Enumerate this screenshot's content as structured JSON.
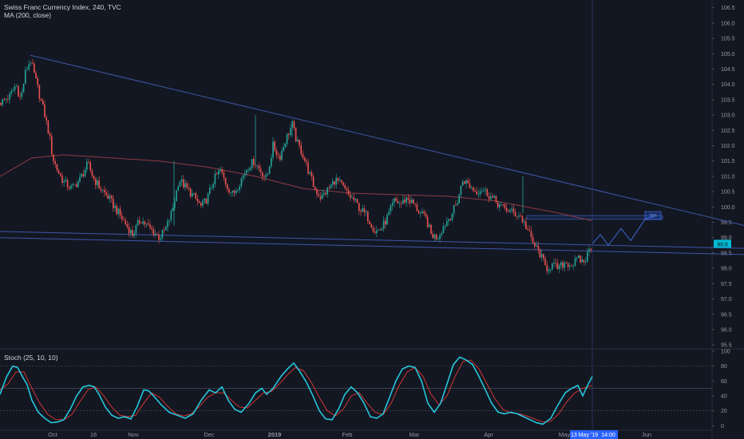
{
  "header": {
    "symbol_title": "Swiss Franc Currency Index, 240, TVC",
    "ma_label": "MA (200, close)",
    "stoch_label": "Stoch (25, 10, 10)"
  },
  "colors": {
    "background": "#131722",
    "up_candle": "#26a69a",
    "down_candle": "#ef5350",
    "trendline": "#3f57a6",
    "ma_line": "#8f3b45",
    "k_line": "#26c6da",
    "d_line": "#e53935",
    "last_price_badge": "#00bcd4",
    "cursor_badge": "#2962ff"
  },
  "chart_data": [
    {
      "type": "candlestick",
      "title": "Swiss Franc Currency Index, 240, TVC",
      "ylim": [
        95.4,
        106.7
      ],
      "y_ticks": [
        "106.5",
        "106.0",
        "105.5",
        "105.0",
        "104.5",
        "104.0",
        "103.5",
        "103.0",
        "102.5",
        "102.0",
        "101.5",
        "101.0",
        "100.5",
        "100.0",
        "99.5",
        "99.0",
        "98.5",
        "98.0",
        "97.5",
        "97.0",
        "96.5",
        "96.0",
        "95.5"
      ],
      "x_ticks": [
        "Oct",
        "16",
        "Nov",
        "Dec",
        "2019",
        "Feb",
        "Mar",
        "Apr",
        "May",
        "Jun"
      ],
      "last_price": "98.8",
      "cursor_date": "13 May '19",
      "cursor_time": "14:00",
      "target_label": "TP",
      "overlay": {
        "name": "MA (200, close)"
      },
      "close_path": [
        [
          0,
          103.4
        ],
        [
          12,
          103.6
        ],
        [
          20,
          104.0
        ],
        [
          26,
          103.5
        ],
        [
          32,
          104.4
        ],
        [
          38,
          104.8
        ],
        [
          44,
          104.2
        ],
        [
          50,
          103.6
        ],
        [
          56,
          103.0
        ],
        [
          62,
          102.3
        ],
        [
          66,
          101.6
        ],
        [
          72,
          101.2
        ],
        [
          80,
          100.8
        ],
        [
          90,
          100.6
        ],
        [
          100,
          100.9
        ],
        [
          110,
          101.4
        ],
        [
          118,
          100.9
        ],
        [
          126,
          100.6
        ],
        [
          136,
          100.3
        ],
        [
          146,
          99.9
        ],
        [
          156,
          99.5
        ],
        [
          166,
          99.1
        ],
        [
          176,
          99.6
        ],
        [
          184,
          99.4
        ],
        [
          192,
          99.2
        ],
        [
          200,
          99.0
        ],
        [
          208,
          99.3
        ],
        [
          216,
          99.9
        ],
        [
          224,
          100.9
        ],
        [
          234,
          100.6
        ],
        [
          244,
          100.3
        ],
        [
          252,
          100.0
        ],
        [
          260,
          100.3
        ],
        [
          268,
          100.9
        ],
        [
          276,
          101.2
        ],
        [
          284,
          100.7
        ],
        [
          292,
          100.4
        ],
        [
          300,
          100.8
        ],
        [
          310,
          101.3
        ],
        [
          318,
          101.5
        ],
        [
          326,
          101.2
        ],
        [
          334,
          100.9
        ],
        [
          342,
          102.0
        ],
        [
          350,
          101.6
        ],
        [
          358,
          102.2
        ],
        [
          366,
          102.7
        ],
        [
          372,
          102.1
        ],
        [
          378,
          101.8
        ],
        [
          386,
          101.2
        ],
        [
          394,
          100.6
        ],
        [
          402,
          100.3
        ],
        [
          412,
          100.6
        ],
        [
          420,
          100.9
        ],
        [
          428,
          100.7
        ],
        [
          436,
          100.4
        ],
        [
          444,
          100.2
        ],
        [
          452,
          99.9
        ],
        [
          460,
          99.7
        ],
        [
          470,
          99.2
        ],
        [
          478,
          99.3
        ],
        [
          486,
          99.7
        ],
        [
          494,
          100.2
        ],
        [
          502,
          100.1
        ],
        [
          510,
          100.3
        ],
        [
          518,
          100.1
        ],
        [
          526,
          99.8
        ],
        [
          534,
          99.6
        ],
        [
          540,
          99.1
        ],
        [
          548,
          99.0
        ],
        [
          556,
          99.4
        ],
        [
          564,
          99.7
        ],
        [
          572,
          100.1
        ],
        [
          580,
          100.9
        ],
        [
          588,
          100.7
        ],
        [
          596,
          100.5
        ],
        [
          604,
          100.6
        ],
        [
          612,
          100.4
        ],
        [
          620,
          100.2
        ],
        [
          628,
          100.0
        ],
        [
          636,
          99.9
        ],
        [
          644,
          99.8
        ],
        [
          652,
          99.7
        ],
        [
          660,
          99.3
        ],
        [
          668,
          98.8
        ],
        [
          676,
          98.5
        ],
        [
          684,
          98.0
        ],
        [
          692,
          98.1
        ],
        [
          700,
          98.0
        ],
        [
          708,
          98.2
        ],
        [
          716,
          98.1
        ],
        [
          724,
          98.3
        ],
        [
          732,
          98.2
        ],
        [
          738,
          98.6
        ],
        [
          742,
          98.8
        ]
      ],
      "ma_path": [
        [
          0,
          101.0
        ],
        [
          40,
          101.6
        ],
        [
          80,
          101.7
        ],
        [
          140,
          101.6
        ],
        [
          200,
          101.5
        ],
        [
          260,
          101.3
        ],
        [
          320,
          101.0
        ],
        [
          380,
          100.6
        ],
        [
          440,
          100.45
        ],
        [
          500,
          100.4
        ],
        [
          560,
          100.35
        ],
        [
          620,
          100.2
        ],
        [
          660,
          100.0
        ],
        [
          700,
          99.8
        ],
        [
          742,
          99.55
        ]
      ],
      "trendlines": [
        {
          "from": [
            38,
            104.95
          ],
          "to": [
            932,
            99.4
          ]
        },
        {
          "from": [
            0,
            99.2
          ],
          "to": [
            932,
            98.65
          ]
        },
        {
          "from": [
            0,
            99.0
          ],
          "to": [
            932,
            98.45
          ]
        }
      ],
      "projection": [
        [
          742,
          98.8
        ],
        [
          752,
          99.1
        ],
        [
          762,
          98.75
        ],
        [
          778,
          99.3
        ],
        [
          790,
          98.9
        ],
        [
          808,
          99.6
        ],
        [
          818,
          99.7
        ]
      ],
      "target_zone": {
        "y_top": 99.72,
        "y_bottom": 99.6,
        "from_x": 660,
        "to_x": 830
      }
    },
    {
      "type": "line",
      "title": "Stoch (25, 10, 10)",
      "ylim": [
        -5,
        102
      ],
      "y_ticks": [
        "100",
        "80",
        "60",
        "40",
        "20",
        "0"
      ],
      "levels": [
        80,
        50,
        20
      ],
      "series": [
        {
          "name": "%K",
          "points": [
            [
              0,
              42
            ],
            [
              8,
              65
            ],
            [
              16,
              80
            ],
            [
              22,
              78
            ],
            [
              28,
              66
            ],
            [
              34,
              55
            ],
            [
              40,
              34
            ],
            [
              48,
              18
            ],
            [
              56,
              10
            ],
            [
              64,
              4
            ],
            [
              72,
              5
            ],
            [
              80,
              8
            ],
            [
              88,
              22
            ],
            [
              96,
              40
            ],
            [
              104,
              52
            ],
            [
              112,
              54
            ],
            [
              118,
              52
            ],
            [
              124,
              42
            ],
            [
              132,
              25
            ],
            [
              140,
              14
            ],
            [
              148,
              10
            ],
            [
              156,
              12
            ],
            [
              164,
              9
            ],
            [
              172,
              26
            ],
            [
              180,
              48
            ],
            [
              186,
              47
            ],
            [
              194,
              38
            ],
            [
              202,
              28
            ],
            [
              212,
              18
            ],
            [
              222,
              14
            ],
            [
              232,
              10
            ],
            [
              242,
              16
            ],
            [
              252,
              34
            ],
            [
              262,
              48
            ],
            [
              270,
              44
            ],
            [
              278,
              52
            ],
            [
              286,
              34
            ],
            [
              294,
              22
            ],
            [
              302,
              18
            ],
            [
              312,
              30
            ],
            [
              320,
              44
            ],
            [
              328,
              50
            ],
            [
              334,
              42
            ],
            [
              342,
              50
            ],
            [
              352,
              66
            ],
            [
              360,
              76
            ],
            [
              368,
              84
            ],
            [
              376,
              72
            ],
            [
              384,
              58
            ],
            [
              392,
              40
            ],
            [
              400,
              20
            ],
            [
              408,
              9
            ],
            [
              416,
              8
            ],
            [
              424,
              22
            ],
            [
              432,
              42
            ],
            [
              440,
              52
            ],
            [
              448,
              44
            ],
            [
              456,
              30
            ],
            [
              464,
              12
            ],
            [
              472,
              10
            ],
            [
              480,
              16
            ],
            [
              488,
              38
            ],
            [
              496,
              60
            ],
            [
              504,
              76
            ],
            [
              512,
              80
            ],
            [
              520,
              78
            ],
            [
              528,
              60
            ],
            [
              536,
              30
            ],
            [
              544,
              18
            ],
            [
              552,
              30
            ],
            [
              560,
              56
            ],
            [
              568,
              82
            ],
            [
              576,
              92
            ],
            [
              584,
              88
            ],
            [
              592,
              82
            ],
            [
              600,
              66
            ],
            [
              608,
              48
            ],
            [
              616,
              30
            ],
            [
              624,
              18
            ],
            [
              632,
              16
            ],
            [
              640,
              18
            ],
            [
              648,
              16
            ],
            [
              656,
              12
            ],
            [
              664,
              8
            ],
            [
              672,
              4
            ],
            [
              680,
              2
            ],
            [
              690,
              10
            ],
            [
              698,
              26
            ],
            [
              708,
              44
            ],
            [
              716,
              50
            ],
            [
              724,
              54
            ],
            [
              730,
              40
            ],
            [
              736,
              54
            ],
            [
              742,
              66
            ]
          ]
        },
        {
          "name": "%D",
          "points": [
            [
              0,
              48
            ],
            [
              10,
              56
            ],
            [
              20,
              72
            ],
            [
              30,
              72
            ],
            [
              40,
              50
            ],
            [
              50,
              30
            ],
            [
              60,
              15
            ],
            [
              70,
              8
            ],
            [
              80,
              8
            ],
            [
              90,
              15
            ],
            [
              100,
              32
            ],
            [
              110,
              48
            ],
            [
              120,
              52
            ],
            [
              130,
              40
            ],
            [
              140,
              25
            ],
            [
              150,
              14
            ],
            [
              160,
              12
            ],
            [
              170,
              14
            ],
            [
              180,
              30
            ],
            [
              190,
              44
            ],
            [
              200,
              38
            ],
            [
              210,
              26
            ],
            [
              220,
              16
            ],
            [
              230,
              13
            ],
            [
              240,
              16
            ],
            [
              250,
              26
            ],
            [
              260,
              38
            ],
            [
              270,
              44
            ],
            [
              280,
              44
            ],
            [
              290,
              34
            ],
            [
              300,
              25
            ],
            [
              310,
              24
            ],
            [
              320,
              34
            ],
            [
              330,
              44
            ],
            [
              340,
              46
            ],
            [
              350,
              56
            ],
            [
              360,
              68
            ],
            [
              370,
              78
            ],
            [
              380,
              74
            ],
            [
              390,
              58
            ],
            [
              400,
              38
            ],
            [
              410,
              20
            ],
            [
              420,
              13
            ],
            [
              430,
              22
            ],
            [
              440,
              40
            ],
            [
              450,
              44
            ],
            [
              460,
              30
            ],
            [
              470,
              18
            ],
            [
              480,
              15
            ],
            [
              490,
              30
            ],
            [
              500,
              54
            ],
            [
              510,
              72
            ],
            [
              520,
              78
            ],
            [
              530,
              66
            ],
            [
              540,
              42
            ],
            [
              550,
              28
            ],
            [
              560,
              40
            ],
            [
              570,
              66
            ],
            [
              580,
              86
            ],
            [
              590,
              88
            ],
            [
              600,
              76
            ],
            [
              610,
              56
            ],
            [
              620,
              36
            ],
            [
              630,
              22
            ],
            [
              640,
              17
            ],
            [
              650,
              16
            ],
            [
              660,
              13
            ],
            [
              670,
              9
            ],
            [
              680,
              5
            ],
            [
              690,
              6
            ],
            [
              700,
              16
            ],
            [
              710,
              32
            ],
            [
              720,
              44
            ],
            [
              730,
              50
            ],
            [
              742,
              54
            ]
          ]
        }
      ]
    }
  ]
}
